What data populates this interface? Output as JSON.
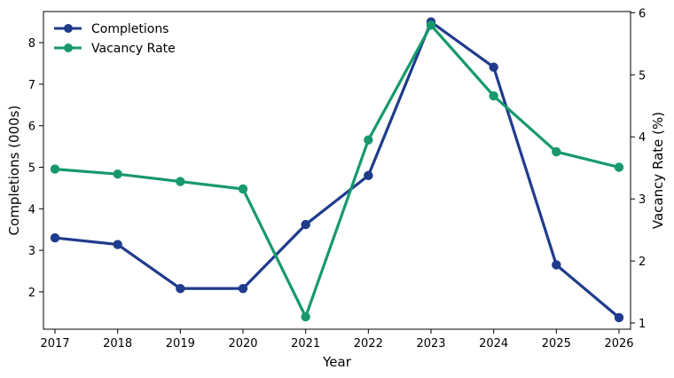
{
  "chart_data": {
    "type": "line",
    "title": "",
    "xlabel": "Year",
    "ylabel_left": "Completions (000s)",
    "ylabel_right": "Vacancy Rate (%)",
    "x": [
      "2017",
      "2018",
      "2019",
      "2020",
      "2021",
      "2022",
      "2023",
      "2024",
      "2025",
      "2026"
    ],
    "ylim_left": [
      1.1,
      8.75
    ],
    "ylim_right": [
      0.9,
      6.02
    ],
    "yticks_left": [
      "2",
      "3",
      "4",
      "5",
      "6",
      "7",
      "8"
    ],
    "yticks_right": [
      "1",
      "2",
      "3",
      "4",
      "5",
      "6"
    ],
    "grid": false,
    "legend_position": "top-left",
    "series": [
      {
        "name": "Completions",
        "axis": "left",
        "color": "#1f3b8c",
        "values": [
          3.3,
          3.14,
          2.08,
          2.08,
          3.62,
          4.8,
          8.5,
          7.41,
          2.65,
          1.38
        ]
      },
      {
        "name": "Vacancy Rate",
        "axis": "right",
        "color": "#17996b",
        "values": [
          3.48,
          3.4,
          3.28,
          3.16,
          1.1,
          3.95,
          5.8,
          4.66,
          3.76,
          3.51
        ]
      }
    ]
  }
}
